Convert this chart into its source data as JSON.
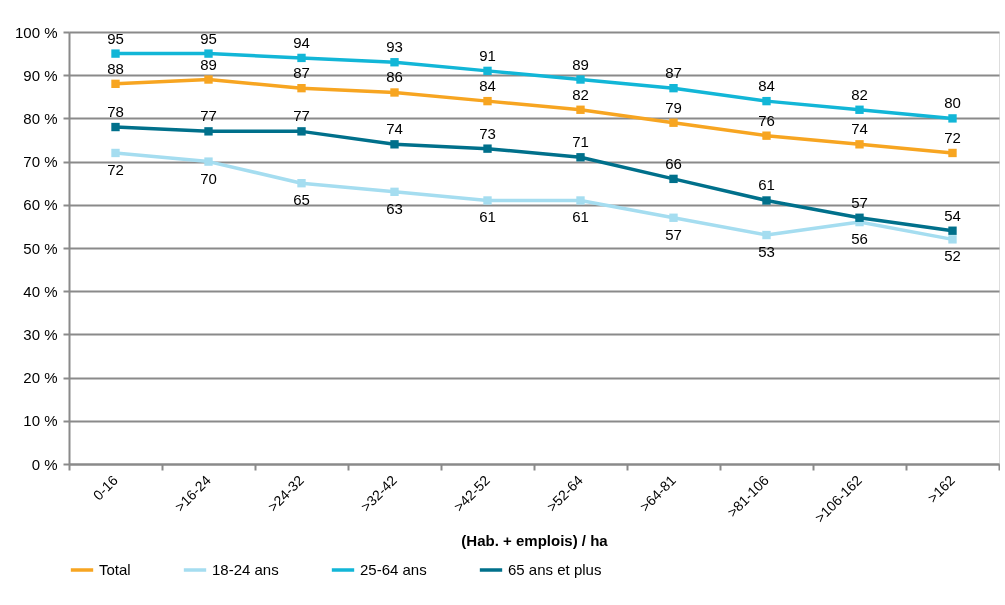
{
  "chart_data": {
    "type": "line",
    "xlabel": "(Hab. + emplois) / ha",
    "categories": [
      "0-16",
      ">16-24",
      ">24-32",
      ">32-42",
      ">42-52",
      ">52-64",
      ">64-81",
      ">81-106",
      ">106-162",
      ">162"
    ],
    "series": [
      {
        "name": "Total",
        "color": "#f7a521",
        "values": [
          88,
          89,
          87,
          86,
          84,
          82,
          79,
          76,
          74,
          72
        ]
      },
      {
        "name": "18-24 ans",
        "color": "#a5ddf0",
        "values": [
          72,
          70,
          65,
          63,
          61,
          61,
          57,
          53,
          56,
          52
        ]
      },
      {
        "name": "25-64 ans",
        "color": "#12b6d7",
        "values": [
          95,
          95,
          94,
          93,
          91,
          89,
          87,
          84,
          82,
          80
        ]
      },
      {
        "name": "65 ans et plus",
        "color": "#00708b",
        "values": [
          78,
          77,
          77,
          74,
          73,
          71,
          66,
          61,
          57,
          54
        ]
      }
    ],
    "ylim": [
      0,
      100
    ],
    "yticks": [
      {
        "value": 0,
        "label": "0 %"
      },
      {
        "value": 10,
        "label": "10 %"
      },
      {
        "value": 20,
        "label": "20 %"
      },
      {
        "value": 30,
        "label": "30 %"
      },
      {
        "value": 40,
        "label": "40 %"
      },
      {
        "value": 50,
        "label": "50 %"
      },
      {
        "value": 60,
        "label": "60 %"
      },
      {
        "value": 70,
        "label": "70 %"
      },
      {
        "value": 80,
        "label": "80 %"
      },
      {
        "value": 90,
        "label": "90 %"
      },
      {
        "value": 100,
        "label": "100 %"
      }
    ],
    "grid": "y",
    "legend": "bottom",
    "marker": "square",
    "line_style": "solid",
    "data_labels": true
  }
}
